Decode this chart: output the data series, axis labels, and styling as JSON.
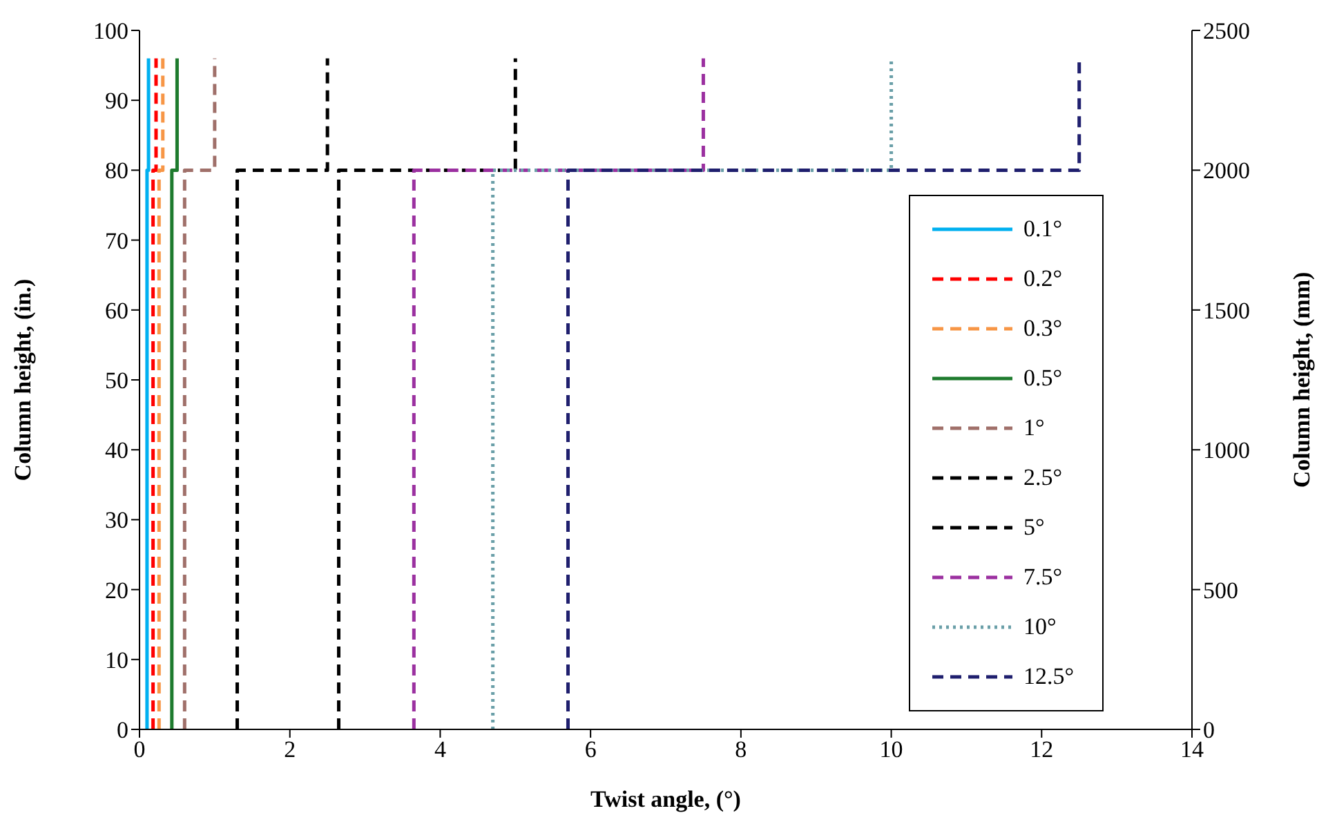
{
  "chart_data": {
    "type": "line",
    "xlabel": "Twist angle, (°)",
    "ylabel": "Column height, (in.)",
    "y2label": "Column height, (mm)",
    "xlim": [
      0,
      14
    ],
    "xticks": [
      0,
      2,
      4,
      6,
      8,
      10,
      12,
      14
    ],
    "ylim": [
      0,
      100
    ],
    "yticks": [
      0,
      10,
      20,
      30,
      40,
      50,
      60,
      70,
      80,
      90,
      100
    ],
    "y2lim": [
      0,
      2500
    ],
    "y2ticks": [
      0,
      500,
      1000,
      1500,
      2000,
      2500
    ],
    "legend": "right",
    "marker": "none",
    "series": [
      {
        "name": "0.1°",
        "color": "#00b0f0",
        "line_style": "solid",
        "x": [
          0.1,
          0.1,
          0.12,
          0.12
        ],
        "values": [
          0,
          80,
          80,
          96
        ]
      },
      {
        "name": "0.2°",
        "color": "#ff0000",
        "line_style": "dashed",
        "x": [
          0.18,
          0.18,
          0.22,
          0.22
        ],
        "values": [
          0,
          80,
          80,
          96
        ]
      },
      {
        "name": "0.3°",
        "color": "#f79646",
        "line_style": "dashed",
        "x": [
          0.26,
          0.26,
          0.31,
          0.31
        ],
        "values": [
          0,
          80,
          80,
          96
        ]
      },
      {
        "name": "0.5°",
        "color": "#1e7b2e",
        "line_style": "solid",
        "x": [
          0.43,
          0.43,
          0.5,
          0.5
        ],
        "values": [
          0,
          80,
          80,
          96
        ]
      },
      {
        "name": "1°",
        "color": "#a0706a",
        "line_style": "dashed",
        "x": [
          0.6,
          0.6,
          1.0,
          1.0
        ],
        "values": [
          0,
          80,
          80,
          96
        ]
      },
      {
        "name": "2.5°",
        "color": "#000000",
        "line_style": "dashed",
        "x": [
          1.3,
          1.3,
          2.5,
          2.5
        ],
        "values": [
          0,
          80,
          80,
          96
        ]
      },
      {
        "name": "5°",
        "color": "#000000",
        "line_style": "dashed",
        "x": [
          2.65,
          2.65,
          5.0,
          5.0
        ],
        "values": [
          0,
          80,
          80,
          96
        ]
      },
      {
        "name": "7.5°",
        "color": "#9b30a0",
        "line_style": "dashed",
        "x": [
          3.65,
          3.65,
          7.5,
          7.5
        ],
        "values": [
          0,
          80,
          80,
          96
        ]
      },
      {
        "name": "10°",
        "color": "#6a9fa8",
        "line_style": "dotted",
        "x": [
          4.7,
          4.7,
          10.0,
          10.0
        ],
        "values": [
          0,
          80,
          80,
          96
        ]
      },
      {
        "name": "12.5°",
        "color": "#1f1f6e",
        "line_style": "dashed",
        "x": [
          5.7,
          5.7,
          12.5,
          12.5
        ],
        "values": [
          0,
          80,
          80,
          96
        ]
      }
    ]
  }
}
